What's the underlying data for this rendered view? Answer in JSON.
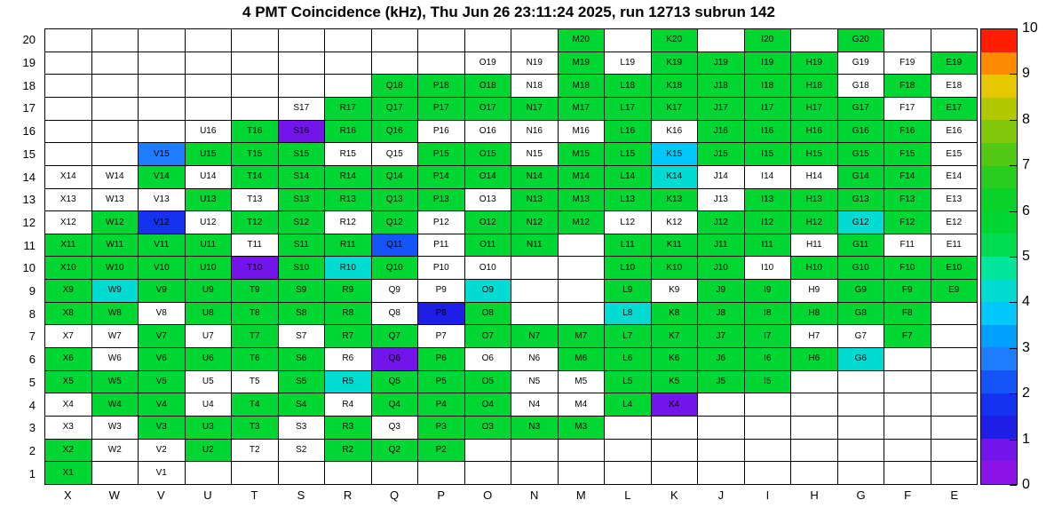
{
  "title": "4 PMT Coincidence (kHz), Thu Jun 26 23:11:24 2025, run 12713 subrun 142",
  "header": {
    "quantity": "4 PMT Coincidence",
    "unit": "kHz",
    "timestamp": "Thu Jun 26 23:11:24 2025",
    "run": "12713",
    "subrun": "142"
  },
  "chart_data": {
    "type": "heatmap",
    "title": "4 PMT Coincidence (kHz), Thu Jun 26 23:11:24 2025, run 12713 subrun 142",
    "value_unit": "kHz",
    "zmin": 0,
    "zmax": 10,
    "grid": "on",
    "legend_position": "right-colorbar",
    "columns": [
      "X",
      "W",
      "V",
      "U",
      "T",
      "S",
      "R",
      "Q",
      "P",
      "O",
      "N",
      "M",
      "L",
      "K",
      "J",
      "I",
      "H",
      "G",
      "F",
      "E"
    ],
    "rows": [
      "20",
      "19",
      "18",
      "17",
      "16",
      "15",
      "14",
      "13",
      "12",
      "11",
      "10",
      "9",
      "8",
      "7",
      "6",
      "5",
      "4",
      "3",
      "2",
      "1"
    ],
    "colorbar_ticks": [
      "0",
      "1",
      "2",
      "3",
      "4",
      "5",
      "6",
      "7",
      "8",
      "9",
      "10"
    ],
    "palette": {
      "band_size": 0.5,
      "empty": "#ffffff",
      "colors": [
        "#8c14e6",
        "#7314eb",
        "#1e1ee6",
        "#1432f0",
        "#1455fa",
        "#1e7dff",
        "#00a0ff",
        "#00c8fa",
        "#00dcd2",
        "#00e69b",
        "#00dc50",
        "#00d732",
        "#0ad228",
        "#28cd1e",
        "#50c814",
        "#82c80a",
        "#b4c800",
        "#e6c800",
        "#ff8c00",
        "#ff1e00"
      ]
    },
    "cells": [
      [
        null,
        null,
        null,
        null,
        null,
        null,
        null,
        null,
        null,
        null,
        null,
        [
          "M20",
          5.5
        ],
        null,
        [
          "K20",
          5.5
        ],
        null,
        [
          "I20",
          5.5
        ],
        null,
        [
          "G20",
          5.5
        ],
        null,
        null
      ],
      [
        null,
        null,
        null,
        null,
        null,
        null,
        null,
        null,
        null,
        [
          "O19",
          0
        ],
        [
          "N19",
          0
        ],
        [
          "M19",
          5.5
        ],
        [
          "L19",
          0
        ],
        [
          "K19",
          5.5
        ],
        [
          "J19",
          5.5
        ],
        [
          "I19",
          5.5
        ],
        [
          "H19",
          5.5
        ],
        [
          "G19",
          0
        ],
        [
          "F19",
          0
        ],
        [
          "E19",
          5.5
        ]
      ],
      [
        null,
        null,
        null,
        null,
        null,
        null,
        null,
        [
          "Q18",
          5.5
        ],
        [
          "P18",
          5.5
        ],
        [
          "O18",
          5.5
        ],
        [
          "N18",
          0
        ],
        [
          "M18",
          5.5
        ],
        [
          "L18",
          5.5
        ],
        [
          "K18",
          5.5
        ],
        [
          "J18",
          5.5
        ],
        [
          "I18",
          5.5
        ],
        [
          "H18",
          5.5
        ],
        [
          "G18",
          0
        ],
        [
          "F18",
          5.5
        ],
        [
          "E18",
          0
        ]
      ],
      [
        null,
        null,
        null,
        null,
        null,
        [
          "S17",
          0
        ],
        [
          "R17",
          5.5
        ],
        [
          "Q17",
          5.5
        ],
        [
          "P17",
          5.5
        ],
        [
          "O17",
          5.5
        ],
        [
          "N17",
          5.5
        ],
        [
          "M17",
          5.5
        ],
        [
          "L17",
          5.5
        ],
        [
          "K17",
          5.5
        ],
        [
          "J17",
          5.5
        ],
        [
          "I17",
          5.5
        ],
        [
          "H17",
          5.5
        ],
        [
          "G17",
          5.5
        ],
        [
          "F17",
          0
        ],
        [
          "E17",
          5.5
        ]
      ],
      [
        null,
        null,
        null,
        [
          "U16",
          0
        ],
        [
          "T16",
          5.5
        ],
        [
          "S16",
          0.5
        ],
        [
          "R16",
          5.5
        ],
        [
          "Q16",
          5.5
        ],
        [
          "P16",
          0
        ],
        [
          "O16",
          0
        ],
        [
          "N16",
          0
        ],
        [
          "M16",
          0
        ],
        [
          "L16",
          5.5
        ],
        [
          "K16",
          0
        ],
        [
          "J16",
          5.5
        ],
        [
          "I16",
          5.5
        ],
        [
          "H16",
          5.5
        ],
        [
          "G16",
          5.5
        ],
        [
          "F16",
          5.5
        ],
        [
          "E16",
          0
        ]
      ],
      [
        null,
        null,
        [
          "V15",
          2.5
        ],
        [
          "U15",
          5.5
        ],
        [
          "T15",
          5.5
        ],
        [
          "S15",
          5.5
        ],
        [
          "R15",
          0
        ],
        [
          "Q15",
          0
        ],
        [
          "P15",
          5.5
        ],
        [
          "O15",
          5.5
        ],
        [
          "N15",
          0
        ],
        [
          "M15",
          5.5
        ],
        [
          "L15",
          5.5
        ],
        [
          "K15",
          3.5
        ],
        [
          "J15",
          5.5
        ],
        [
          "I15",
          5.5
        ],
        [
          "H15",
          5.5
        ],
        [
          "G15",
          5.5
        ],
        [
          "F15",
          5.5
        ],
        [
          "E15",
          0
        ]
      ],
      [
        [
          "X14",
          0
        ],
        [
          "W14",
          0
        ],
        [
          "V14",
          5.5
        ],
        [
          "U14",
          0
        ],
        [
          "T14",
          5.5
        ],
        [
          "S14",
          5.5
        ],
        [
          "R14",
          5.5
        ],
        [
          "Q14",
          5.5
        ],
        [
          "P14",
          5.5
        ],
        [
          "O14",
          5.5
        ],
        [
          "N14",
          5.5
        ],
        [
          "M14",
          5.5
        ],
        [
          "L14",
          5.5
        ],
        [
          "K14",
          4
        ],
        [
          "J14",
          0
        ],
        [
          "I14",
          0
        ],
        [
          "H14",
          0
        ],
        [
          "G14",
          5.5
        ],
        [
          "F14",
          5.5
        ],
        [
          "E14",
          0
        ]
      ],
      [
        [
          "X13",
          0
        ],
        [
          "W13",
          0
        ],
        [
          "V13",
          0
        ],
        [
          "U13",
          5.5
        ],
        [
          "T13",
          0
        ],
        [
          "S13",
          5.5
        ],
        [
          "R13",
          5.5
        ],
        [
          "Q13",
          5.5
        ],
        [
          "P13",
          5.5
        ],
        [
          "O13",
          0
        ],
        [
          "N13",
          5.5
        ],
        [
          "M13",
          5.5
        ],
        [
          "L13",
          5.5
        ],
        [
          "K13",
          5.5
        ],
        [
          "J13",
          0
        ],
        [
          "I13",
          5.5
        ],
        [
          "H13",
          5.5
        ],
        [
          "G13",
          5.5
        ],
        [
          "F13",
          5.5
        ],
        [
          "E13",
          0
        ]
      ],
      [
        [
          "X12",
          0
        ],
        [
          "W12",
          5.5
        ],
        [
          "V12",
          1.5
        ],
        [
          "U12",
          0
        ],
        [
          "T12",
          5.5
        ],
        [
          "S12",
          5.5
        ],
        [
          "R12",
          0
        ],
        [
          "Q12",
          5.5
        ],
        [
          "P12",
          0
        ],
        [
          "O12",
          5.5
        ],
        [
          "N12",
          5.5
        ],
        [
          "M12",
          5.5
        ],
        [
          "L12",
          0
        ],
        [
          "K12",
          0
        ],
        [
          "J12",
          5.5
        ],
        [
          "I12",
          5.5
        ],
        [
          "H12",
          5.5
        ],
        [
          "G12",
          4
        ],
        [
          "F12",
          5.5
        ],
        [
          "E12",
          0
        ]
      ],
      [
        [
          "X11",
          5.5
        ],
        [
          "W11",
          5.5
        ],
        [
          "V11",
          5.5
        ],
        [
          "U11",
          5.5
        ],
        [
          "T11",
          0
        ],
        [
          "S11",
          5.5
        ],
        [
          "R11",
          5.5
        ],
        [
          "Q11",
          2
        ],
        [
          "P11",
          0
        ],
        [
          "O11",
          5.5
        ],
        [
          "N11",
          5.5
        ],
        null,
        [
          "L11",
          5.5
        ],
        [
          "K11",
          5.5
        ],
        [
          "J11",
          5.5
        ],
        [
          "I11",
          5.5
        ],
        [
          "H11",
          0
        ],
        [
          "G11",
          5.5
        ],
        [
          "F11",
          0
        ],
        [
          "E11",
          0
        ]
      ],
      [
        [
          "X10",
          5.5
        ],
        [
          "W10",
          5.5
        ],
        [
          "V10",
          5.5
        ],
        [
          "U10",
          5.5
        ],
        [
          "T10",
          0.5
        ],
        [
          "S10",
          5.5
        ],
        [
          "R10",
          4
        ],
        [
          "Q10",
          5.5
        ],
        [
          "P10",
          0
        ],
        [
          "O10",
          0
        ],
        null,
        null,
        [
          "L10",
          5.5
        ],
        [
          "K10",
          5.5
        ],
        [
          "J10",
          5.5
        ],
        [
          "I10",
          0
        ],
        [
          "H10",
          5.5
        ],
        [
          "G10",
          5.5
        ],
        [
          "F10",
          5.5
        ],
        [
          "E10",
          5.5
        ]
      ],
      [
        [
          "X9",
          5.5
        ],
        [
          "W9",
          4
        ],
        [
          "V9",
          5.5
        ],
        [
          "U9",
          5.5
        ],
        [
          "T9",
          5.5
        ],
        [
          "S9",
          5.5
        ],
        [
          "R9",
          5.5
        ],
        [
          "Q9",
          0
        ],
        [
          "P9",
          0
        ],
        [
          "O9",
          4
        ],
        null,
        null,
        [
          "L9",
          5.5
        ],
        [
          "K9",
          0
        ],
        [
          "J9",
          5.5
        ],
        [
          "I9",
          5.5
        ],
        [
          "H9",
          0
        ],
        [
          "G9",
          5.5
        ],
        [
          "F9",
          5.5
        ],
        [
          "E9",
          5.5
        ]
      ],
      [
        [
          "X8",
          5.5
        ],
        [
          "W8",
          5.5
        ],
        [
          "V8",
          0
        ],
        [
          "U8",
          5.5
        ],
        [
          "T8",
          5.5
        ],
        [
          "S8",
          5.5
        ],
        [
          "R8",
          5.5
        ],
        [
          "Q8",
          0
        ],
        [
          "P8",
          1
        ],
        [
          "O8",
          5.5
        ],
        null,
        null,
        [
          "L8",
          4
        ],
        [
          "K8",
          5.5
        ],
        [
          "J8",
          5.5
        ],
        [
          "I8",
          5.5
        ],
        [
          "H8",
          5.5
        ],
        [
          "G8",
          5.5
        ],
        [
          "F8",
          5.5
        ],
        null
      ],
      [
        [
          "X7",
          0
        ],
        [
          "W7",
          0
        ],
        [
          "V7",
          5.5
        ],
        [
          "U7",
          0
        ],
        [
          "T7",
          5.5
        ],
        [
          "S7",
          0
        ],
        [
          "R7",
          5.5
        ],
        [
          "Q7",
          5.5
        ],
        [
          "P7",
          0
        ],
        [
          "O7",
          5.5
        ],
        [
          "N7",
          5.5
        ],
        [
          "M7",
          5.5
        ],
        [
          "L7",
          5.5
        ],
        [
          "K7",
          5.5
        ],
        [
          "J7",
          5.5
        ],
        [
          "I7",
          5.5
        ],
        [
          "H7",
          0
        ],
        [
          "G7",
          0
        ],
        [
          "F7",
          5.5
        ],
        null
      ],
      [
        [
          "X6",
          5.5
        ],
        [
          "W6",
          0
        ],
        [
          "V6",
          5.5
        ],
        [
          "U6",
          5.5
        ],
        [
          "T6",
          5.5
        ],
        [
          "S6",
          5.5
        ],
        [
          "R6",
          0
        ],
        [
          "Q6",
          0.5
        ],
        [
          "P6",
          5.5
        ],
        [
          "O6",
          0
        ],
        [
          "N6",
          0
        ],
        [
          "M6",
          5.5
        ],
        [
          "L6",
          5.5
        ],
        [
          "K6",
          5.5
        ],
        [
          "J6",
          5.5
        ],
        [
          "I6",
          5.5
        ],
        [
          "H6",
          5.5
        ],
        [
          "G6",
          4
        ],
        null,
        null
      ],
      [
        [
          "X5",
          5.5
        ],
        [
          "W5",
          5.5
        ],
        [
          "V5",
          5.5
        ],
        [
          "U5",
          0
        ],
        [
          "T5",
          0
        ],
        [
          "S5",
          5.5
        ],
        [
          "R5",
          4
        ],
        [
          "Q5",
          5.5
        ],
        [
          "P5",
          5.5
        ],
        [
          "O5",
          5.5
        ],
        [
          "N5",
          0
        ],
        [
          "M5",
          0
        ],
        [
          "L5",
          5.5
        ],
        [
          "K5",
          5.5
        ],
        [
          "J5",
          5.5
        ],
        [
          "I5",
          5.5
        ],
        null,
        null,
        null,
        null
      ],
      [
        [
          "X4",
          0
        ],
        [
          "W4",
          5.5
        ],
        [
          "V4",
          5.5
        ],
        [
          "U4",
          0
        ],
        [
          "T4",
          5.5
        ],
        [
          "S4",
          5.5
        ],
        [
          "R4",
          0
        ],
        [
          "Q4",
          5.5
        ],
        [
          "P4",
          5.5
        ],
        [
          "O4",
          5.5
        ],
        [
          "N4",
          0
        ],
        [
          "M4",
          0
        ],
        [
          "L4",
          5.5
        ],
        [
          "K4",
          0.5
        ],
        null,
        null,
        null,
        null,
        null,
        null
      ],
      [
        [
          "X3",
          0
        ],
        [
          "W3",
          0
        ],
        [
          "V3",
          5.5
        ],
        [
          "U3",
          5.5
        ],
        [
          "T3",
          5.5
        ],
        [
          "S3",
          0
        ],
        [
          "R3",
          5.5
        ],
        [
          "Q3",
          0
        ],
        [
          "P3",
          5.5
        ],
        [
          "O3",
          5.5
        ],
        [
          "N3",
          5.5
        ],
        [
          "M3",
          5.5
        ],
        null,
        null,
        null,
        null,
        null,
        null,
        null,
        null
      ],
      [
        [
          "X2",
          5.5
        ],
        [
          "W2",
          0
        ],
        [
          "V2",
          0
        ],
        [
          "U2",
          5.5
        ],
        [
          "T2",
          0
        ],
        [
          "S2",
          0
        ],
        [
          "R2",
          5.5
        ],
        [
          "Q2",
          5.5
        ],
        [
          "P2",
          5.5
        ],
        null,
        null,
        null,
        null,
        null,
        null,
        null,
        null,
        null,
        null,
        null
      ],
      [
        [
          "X1",
          5.5
        ],
        null,
        [
          "V1",
          0
        ],
        null,
        null,
        null,
        null,
        null,
        null,
        null,
        null,
        null,
        null,
        null,
        null,
        null,
        null,
        null,
        null,
        null
      ]
    ]
  }
}
